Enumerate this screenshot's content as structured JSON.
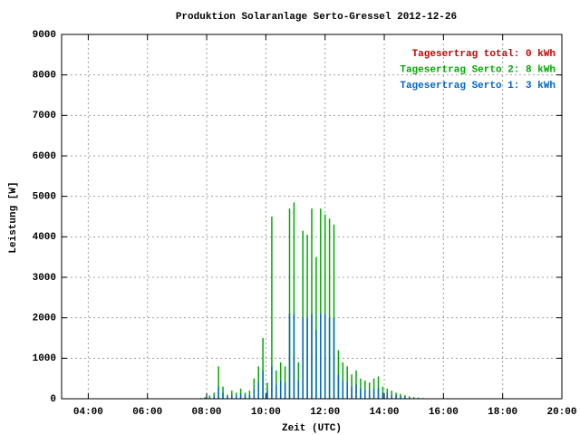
{
  "chart_data": {
    "type": "impulse",
    "title": "Produktion Solaranlage Serto-Gressel 2012-12-26",
    "x_label": "Zeit (UTC)",
    "y_label": "Leistung [W]",
    "x": [
      7.8,
      7.95,
      8.1,
      8.25,
      8.4,
      8.55,
      8.7,
      8.85,
      9.0,
      9.15,
      9.3,
      9.45,
      9.6,
      9.75,
      9.9,
      10.05,
      10.2,
      10.35,
      10.5,
      10.65,
      10.8,
      10.95,
      11.1,
      11.25,
      11.4,
      11.55,
      11.7,
      11.85,
      12.0,
      12.15,
      12.3,
      12.45,
      12.6,
      12.75,
      12.9,
      13.05,
      13.2,
      13.35,
      13.5,
      13.65,
      13.8,
      13.95,
      14.1,
      14.25,
      14.4,
      14.55,
      14.7,
      14.85,
      15.0,
      15.15,
      15.3
    ],
    "series": [
      {
        "name": "Tagesertrag total: 0 kWh",
        "color": "#cc0000",
        "values": [
          null,
          null,
          null,
          null,
          null,
          null,
          null,
          null,
          null,
          null,
          null,
          null,
          null,
          null,
          null,
          null,
          null,
          null,
          null,
          null,
          null,
          null,
          null,
          null,
          null,
          null,
          null,
          null,
          null,
          null,
          null,
          null,
          null,
          null,
          null,
          null,
          null,
          null,
          null,
          null,
          null,
          null,
          null,
          null,
          null,
          null,
          null,
          null,
          null,
          null,
          null
        ]
      },
      {
        "name": "Tagesertrag Serto 2: 8 kWh",
        "color": "#00aa00",
        "values": [
          20,
          40,
          80,
          150,
          800,
          300,
          100,
          200,
          150,
          250,
          150,
          200,
          500,
          800,
          1500,
          400,
          4500,
          700,
          900,
          800,
          4700,
          4850,
          900,
          4150,
          4050,
          4700,
          3500,
          4700,
          4550,
          4450,
          4300,
          1200,
          900,
          800,
          600,
          700,
          500,
          450,
          400,
          500,
          550,
          300,
          250,
          200,
          150,
          120,
          90,
          60,
          40,
          30,
          20
        ]
      },
      {
        "name": "Tagesertrag Serto 1: 3 kWh",
        "color": "#0066cc",
        "values": [
          10,
          20,
          40,
          70,
          300,
          150,
          50,
          100,
          80,
          120,
          80,
          100,
          250,
          400,
          700,
          200,
          800,
          350,
          450,
          400,
          2100,
          2100,
          450,
          2000,
          2000,
          2100,
          1700,
          2100,
          2100,
          2000,
          2000,
          600,
          450,
          400,
          300,
          350,
          250,
          220,
          200,
          250,
          270,
          150,
          120,
          100,
          80,
          60,
          45,
          30,
          20,
          15,
          10
        ]
      }
    ],
    "xlim": [
      3.1,
      20
    ],
    "xticks": [
      {
        "value": 4,
        "label": "04:00"
      },
      {
        "value": 6,
        "label": "06:00"
      },
      {
        "value": 8,
        "label": "08:00"
      },
      {
        "value": 10,
        "label": "10:00"
      },
      {
        "value": 12,
        "label": "12:00"
      },
      {
        "value": 14,
        "label": "14:00"
      },
      {
        "value": 16,
        "label": "16:00"
      },
      {
        "value": 18,
        "label": "18:00"
      },
      {
        "value": 20,
        "label": "20:00"
      }
    ],
    "ylim": [
      0,
      9000
    ],
    "yticks": [
      0,
      1000,
      2000,
      3000,
      4000,
      5000,
      6000,
      7000,
      8000,
      9000
    ],
    "grid": true
  }
}
